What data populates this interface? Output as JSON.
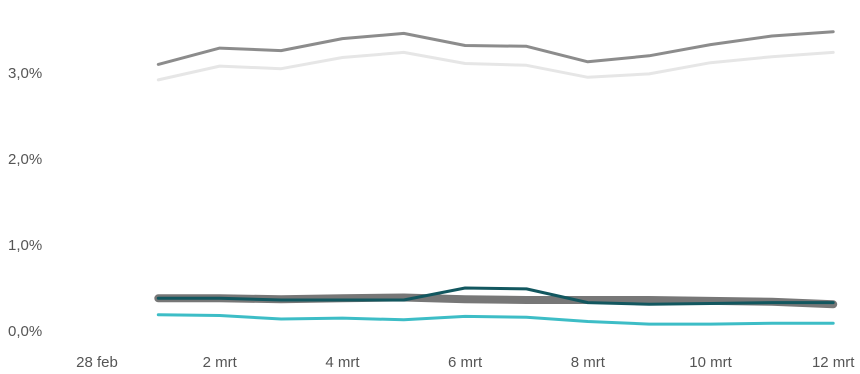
{
  "chart_data": {
    "type": "line",
    "x": [
      "28 feb",
      "1 mrt",
      "2 mrt",
      "3 mrt",
      "4 mrt",
      "5 mrt",
      "6 mrt",
      "7 mrt",
      "8 mrt",
      "9 mrt",
      "10 mrt",
      "11 mrt",
      "12 mrt"
    ],
    "x_tick_labels": [
      "28 feb",
      "2 mrt",
      "4 mrt",
      "6 mrt",
      "8 mrt",
      "10 mrt",
      "12 mrt"
    ],
    "y_tick_labels": [
      "0,0%",
      "1,0%",
      "2,0%",
      "3,0%"
    ],
    "ylim": [
      0,
      3.6
    ],
    "grid": false,
    "title": "",
    "xlabel": "",
    "ylabel": "",
    "series": [
      {
        "color": "#e6e6e6",
        "width": 3,
        "values": [
          null,
          2.92,
          3.08,
          3.05,
          3.18,
          3.24,
          3.11,
          3.09,
          2.95,
          2.99,
          3.12,
          3.19,
          3.24
        ]
      },
      {
        "color": "#8c8c8c",
        "width": 3,
        "values": [
          null,
          3.1,
          3.29,
          3.26,
          3.4,
          3.46,
          3.32,
          3.31,
          3.13,
          3.2,
          3.33,
          3.43,
          3.48
        ]
      },
      {
        "color": "#777777",
        "width": 8,
        "values": [
          null,
          0.38,
          0.38,
          0.37,
          0.38,
          0.39,
          0.37,
          0.36,
          0.36,
          0.36,
          0.35,
          0.34,
          0.31
        ]
      },
      {
        "color": "#3dbdc6",
        "width": 3,
        "values": [
          null,
          0.19,
          0.18,
          0.14,
          0.15,
          0.13,
          0.17,
          0.16,
          0.11,
          0.08,
          0.08,
          0.09,
          0.09
        ]
      },
      {
        "color": "#12575f",
        "width": 3,
        "values": [
          null,
          0.38,
          0.38,
          0.36,
          0.36,
          0.36,
          0.5,
          0.49,
          0.33,
          0.31,
          0.32,
          0.33,
          0.33
        ]
      }
    ]
  }
}
